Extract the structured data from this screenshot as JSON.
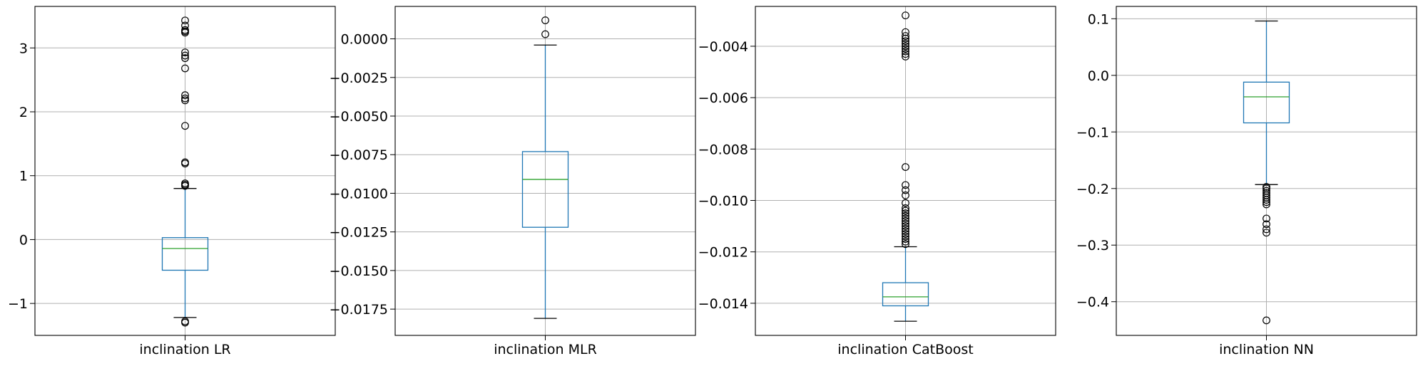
{
  "chart_data": [
    {
      "type": "box",
      "xlabel": "inclination LR",
      "ylim": [
        -1.5,
        3.65
      ],
      "yticks": [
        -1,
        0,
        1,
        2,
        3
      ],
      "ytick_labels": [
        "−1",
        "0",
        "1",
        "2",
        "3"
      ],
      "box": {
        "whisker_low": -1.22,
        "q1": -0.48,
        "median": -0.14,
        "q3": 0.03,
        "whisker_high": 0.8
      },
      "outliers": [
        -1.28,
        -1.3,
        0.84,
        0.86,
        0.88,
        1.19,
        1.21,
        1.78,
        2.18,
        2.21,
        2.26,
        2.68,
        2.84,
        2.88,
        2.93,
        3.24,
        3.26,
        3.28,
        3.35,
        3.43
      ],
      "grid": true
    },
    {
      "type": "box",
      "xlabel": "inclination MLR",
      "ylim": [
        -0.0192,
        0.0021
      ],
      "yticks": [
        0,
        -0.0025,
        -0.005,
        -0.0075,
        -0.01,
        -0.0125,
        -0.015,
        -0.0175
      ],
      "ytick_labels": [
        "0.0000",
        "−0.0025",
        "−0.0050",
        "−0.0075",
        "−0.0100",
        "−0.0125",
        "−0.0150",
        "−0.0175"
      ],
      "box": {
        "whisker_low": -0.0181,
        "q1": -0.0122,
        "median": -0.0091,
        "q3": -0.0073,
        "whisker_high": -0.0004
      },
      "outliers": [
        0.0003,
        0.0012
      ],
      "grid": true
    },
    {
      "type": "box",
      "xlabel": "inclination CatBoost",
      "ylim": [
        -0.01525,
        -0.00245
      ],
      "yticks": [
        -0.004,
        -0.006,
        -0.008,
        -0.01,
        -0.012,
        -0.014
      ],
      "ytick_labels": [
        "−0.004",
        "−0.006",
        "−0.008",
        "−0.010",
        "−0.012",
        "−0.014"
      ],
      "box": {
        "whisker_low": -0.0147,
        "q1": -0.0141,
        "median": -0.01375,
        "q3": -0.0132,
        "whisker_high": -0.0118
      },
      "outliers": [
        -0.0028,
        -0.00345,
        -0.0036,
        -0.0037,
        -0.0038,
        -0.0039,
        -0.004,
        -0.0041,
        -0.0042,
        -0.0043,
        -0.0044,
        -0.0087,
        -0.0094,
        -0.0096,
        -0.0098,
        -0.0101,
        -0.0103,
        -0.0104,
        -0.0105,
        -0.0106,
        -0.0107,
        -0.0108,
        -0.0109,
        -0.011,
        -0.0111,
        -0.0112,
        -0.0113,
        -0.0114,
        -0.0115,
        -0.0116,
        -0.0117
      ],
      "grid": true
    },
    {
      "type": "box",
      "xlabel": "inclination NN",
      "ylim": [
        -0.4595,
        0.1218
      ],
      "yticks": [
        0.1,
        0,
        -0.1,
        -0.2,
        -0.3,
        -0.4
      ],
      "ytick_labels": [
        "0.1",
        "0.0",
        "−0.1",
        "−0.2",
        "−0.3",
        "−0.4"
      ],
      "box": {
        "whisker_low": -0.193,
        "q1": -0.084,
        "median": -0.038,
        "q3": -0.012,
        "whisker_high": 0.096
      },
      "outliers": [
        -0.197,
        -0.2,
        -0.204,
        -0.208,
        -0.212,
        -0.216,
        -0.22,
        -0.224,
        -0.228,
        -0.253,
        -0.263,
        -0.272,
        -0.278,
        -0.433
      ],
      "grid": true
    }
  ],
  "colors": {
    "box": "#1f77b4",
    "median": "#2ca02c",
    "grid": "#b0b0b0",
    "axes": "#000000"
  }
}
